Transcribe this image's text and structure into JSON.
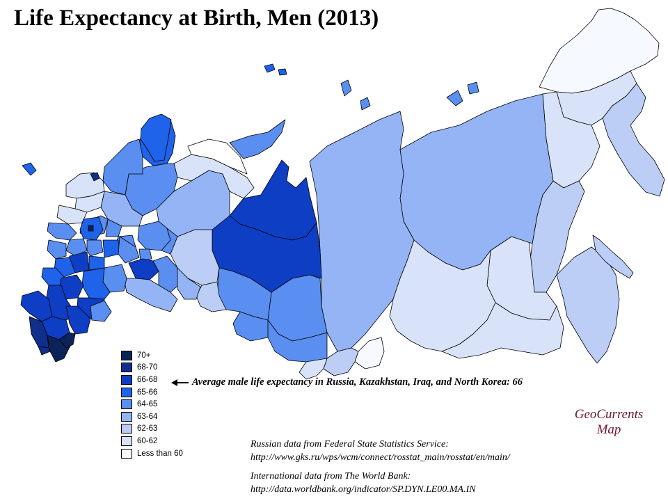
{
  "title": "Life Expectancy at Birth, Men (2013)",
  "legend": [
    {
      "label": "70+",
      "color": "#0b2358"
    },
    {
      "label": "68-70",
      "color": "#0e2f8c"
    },
    {
      "label": "66-68",
      "color": "#0d3ec4"
    },
    {
      "label": "65-66",
      "color": "#1f63ea"
    },
    {
      "label": "64-65",
      "color": "#5a8ef0"
    },
    {
      "label": "63-64",
      "color": "#94b4f5"
    },
    {
      "label": "62-63",
      "color": "#bccdf6"
    },
    {
      "label": "60-62",
      "color": "#d8e2f9"
    },
    {
      "label": "Less than 60",
      "color": "#f6f9ff"
    }
  ],
  "annotation": "Average male life expectancy in Russia,  Kazakhstan, Iraq, and North Korea: 66",
  "credit": {
    "line1": "GeoCurrents",
    "line2": "Map"
  },
  "sources": {
    "russia_label": "Russian data from Federal State Statistics Service:",
    "russia_url": "http://www.gks.ru/wps/wcm/connect/rosstat_main/rosstat/en/main/",
    "intl_label": "International data from The World Bank:",
    "intl_url": "http://data.worldbank.org/indicator/SP.DYN.LE00.MA.IN"
  }
}
